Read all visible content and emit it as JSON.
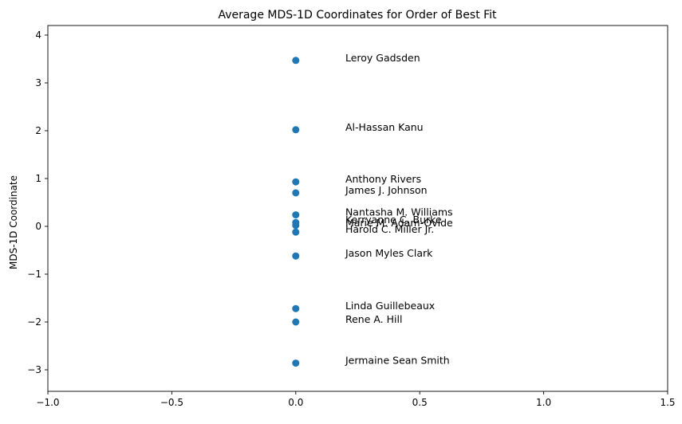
{
  "chart_data": {
    "type": "scatter",
    "title": "Average MDS-1D Coordinates for Order of Best Fit",
    "xlabel": "",
    "ylabel": "MDS-1D Coordinate",
    "xlim": [
      -1.0,
      1.5
    ],
    "ylim": [
      -3.45,
      4.2
    ],
    "xticks": [
      -1.0,
      -0.5,
      0.0,
      0.5,
      1.0,
      1.5
    ],
    "xtick_labels": [
      "−1.0",
      "−0.5",
      "0.0",
      "0.5",
      "1.0",
      "1.5"
    ],
    "yticks": [
      -3,
      -2,
      -1,
      0,
      1,
      2,
      3,
      4
    ],
    "ytick_labels": [
      "−3",
      "−2",
      "−1",
      "0",
      "1",
      "2",
      "3",
      "4"
    ],
    "grid": false,
    "marker_color": "#1f77b4",
    "label_x_offset": 0.2,
    "points": [
      {
        "label": "Leroy Gadsden",
        "x": 0.0,
        "y": 3.47
      },
      {
        "label": "Al-Hassan Kanu",
        "x": 0.0,
        "y": 2.02
      },
      {
        "label": "Anthony Rivers",
        "x": 0.0,
        "y": 0.93
      },
      {
        "label": "James J. Johnson",
        "x": 0.0,
        "y": 0.7
      },
      {
        "label": "Nantasha M. Williams",
        "x": 0.0,
        "y": 0.24
      },
      {
        "label": "Kerryanne C. Burke",
        "x": 0.0,
        "y": 0.08
      },
      {
        "label": "Marie M. Adam-Ovide",
        "x": 0.0,
        "y": 0.02
      },
      {
        "label": "Harold C. Miller Jr.",
        "x": 0.0,
        "y": -0.12
      },
      {
        "label": "Jason Myles Clark",
        "x": 0.0,
        "y": -0.62
      },
      {
        "label": "Linda Guillebeaux",
        "x": 0.0,
        "y": -1.72
      },
      {
        "label": "Rene A. Hill",
        "x": 0.0,
        "y": -2.0
      },
      {
        "label": "Jermaine Sean Smith",
        "x": 0.0,
        "y": -2.86
      }
    ]
  }
}
